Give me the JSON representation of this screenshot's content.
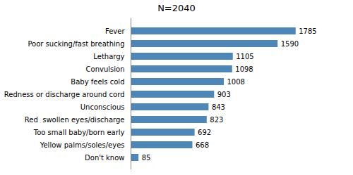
{
  "chart_data": {
    "type": "bar",
    "orientation": "horizontal",
    "title": "N=2040",
    "categories": [
      "Don't know",
      "Yellow palms/soles/eyes",
      "Too small baby/born early",
      "Red  swollen eyes/discharge",
      "Unconscious",
      "Redness or discharge around cord",
      "Baby feels cold",
      "Convulsion",
      "Lethargy",
      "Poor sucking/fast breathing",
      "Fever"
    ],
    "values": [
      85,
      668,
      692,
      823,
      843,
      903,
      1008,
      1098,
      1105,
      1590,
      1785
    ],
    "color": "#4f86b8",
    "xlim": [
      0,
      2100
    ],
    "data_labels": true,
    "tick_labels": "y",
    "grid": false
  }
}
